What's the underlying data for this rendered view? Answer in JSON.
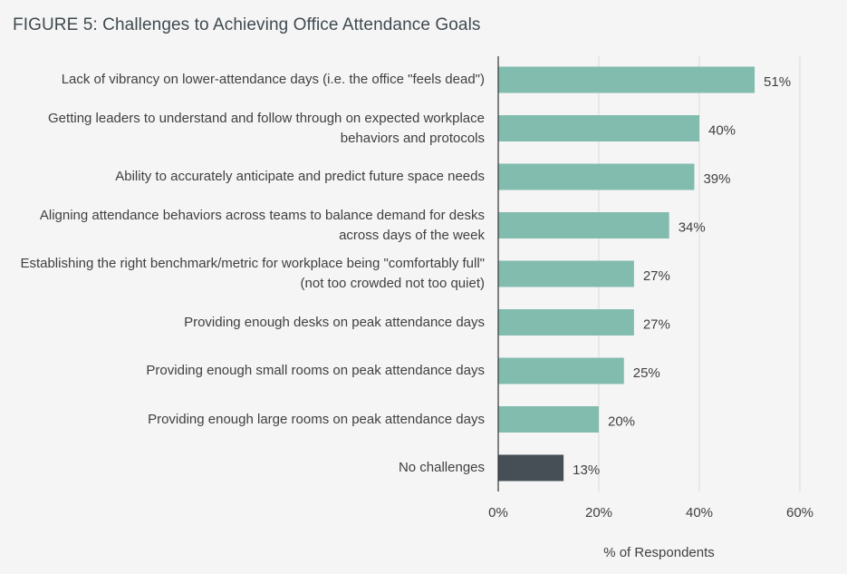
{
  "title": "FIGURE 5: Challenges to Achieving Office Attendance Goals",
  "colors": {
    "bar": "#82bcae",
    "bar_highlight": "#454f55",
    "grid": "#dcdcdc",
    "axis": "#333333"
  },
  "chart_data": {
    "type": "bar",
    "orientation": "horizontal",
    "title": "FIGURE 5: Challenges to Achieving Office Attendance Goals",
    "xlabel": "% of Respondents",
    "ylabel": "",
    "xlim": [
      0,
      60
    ],
    "xticks": [
      0,
      20,
      40,
      60
    ],
    "xtick_labels": [
      "0%",
      "20%",
      "40%",
      "60%"
    ],
    "grid": true,
    "categories": [
      "Lack of vibrancy on lower-attendance days (i.e. the office \"feels dead\")",
      "Getting leaders to understand and follow through on expected workplace behaviors and protocols",
      "Ability to accurately anticipate and predict future space needs",
      "Aligning attendance behaviors across teams to balance demand for desks across days of the week",
      "Establishing the right benchmark/metric for workplace being \"comfortably full\" (not too crowded not too quiet)",
      "Providing enough desks on peak attendance days",
      "Providing enough small rooms on peak attendance days",
      "Providing enough large rooms on peak attendance days",
      "No challenges"
    ],
    "values": [
      51,
      40,
      39,
      34,
      27,
      27,
      25,
      20,
      13
    ],
    "value_labels": [
      "51%",
      "40%",
      "39%",
      "34%",
      "27%",
      "27%",
      "25%",
      "20%",
      "13%"
    ],
    "highlight_index": 8
  }
}
